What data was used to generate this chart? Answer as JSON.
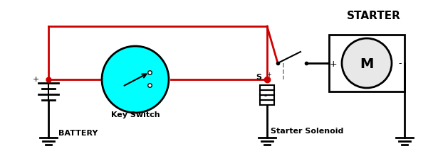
{
  "bg_color": "#ffffff",
  "red": "#cc0000",
  "blk": "#000000",
  "gray": "#888888",
  "cyan": "#00FFFF",
  "fig_width": 6.08,
  "fig_height": 2.28,
  "dpi": 100,
  "title": "STARTER",
  "battery_label": "BATTERY",
  "key_switch_label": "Key Switch",
  "solenoid_label": "Starter Solenoid",
  "s_label": "S",
  "plus_label": "+",
  "minus_label": "-",
  "motor_label": "M",
  "xlim": [
    0,
    608
  ],
  "ylim": [
    0,
    228
  ]
}
